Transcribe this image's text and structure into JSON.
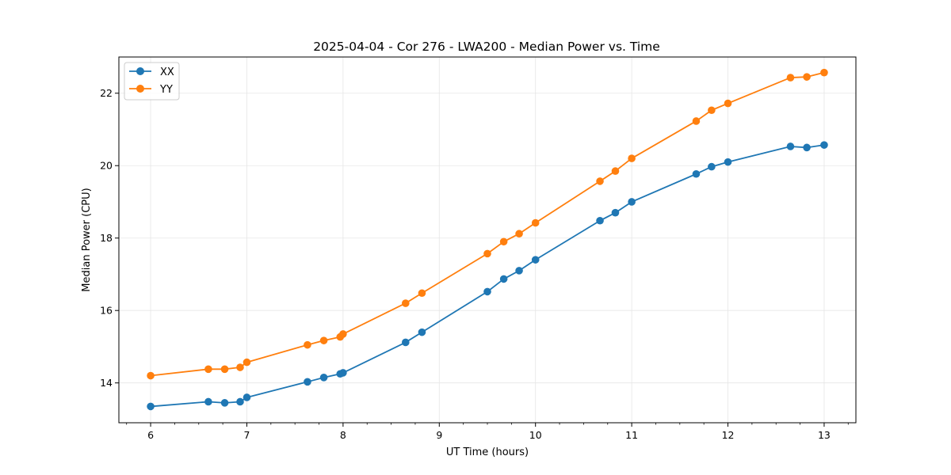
{
  "chart_data": {
    "type": "line",
    "title": "2025-04-04 - Cor 276 - LWA200 - Median Power vs. Time",
    "xlabel": "UT Time (hours)",
    "ylabel": "Median Power (CPU)",
    "xlim": [
      5.67,
      13.33
    ],
    "ylim": [
      12.9,
      23.0
    ],
    "xticks": [
      6,
      7,
      8,
      9,
      10,
      11,
      12,
      13
    ],
    "xtick_labels": [
      "6",
      "7",
      "8",
      "9",
      "10",
      "11",
      "12",
      "13"
    ],
    "yticks": [
      14,
      16,
      18,
      20,
      22
    ],
    "ytick_labels": [
      "14",
      "16",
      "18",
      "20",
      "22"
    ],
    "grid": true,
    "legend_position": "top-left",
    "series": [
      {
        "name": "XX",
        "color": "#1f77b4",
        "x": [
          6.0,
          6.6,
          6.77,
          6.93,
          7.0,
          7.63,
          7.8,
          7.97,
          8.0,
          8.65,
          8.82,
          9.5,
          9.67,
          9.83,
          10.0,
          10.67,
          10.83,
          11.0,
          11.67,
          11.83,
          12.0,
          12.65,
          12.82,
          13.0
        ],
        "y": [
          13.35,
          13.48,
          13.45,
          13.48,
          13.6,
          14.03,
          14.15,
          14.25,
          14.28,
          15.12,
          15.4,
          16.52,
          16.87,
          17.1,
          17.4,
          18.48,
          18.7,
          19.0,
          19.77,
          19.97,
          20.1,
          20.53,
          20.5,
          20.57
        ]
      },
      {
        "name": "YY",
        "color": "#ff7f0e",
        "x": [
          6.0,
          6.6,
          6.77,
          6.93,
          7.0,
          7.63,
          7.8,
          7.97,
          8.0,
          8.65,
          8.82,
          9.5,
          9.67,
          9.83,
          10.0,
          10.67,
          10.83,
          11.0,
          11.67,
          11.83,
          12.0,
          12.65,
          12.82,
          13.0
        ],
        "y": [
          14.2,
          14.38,
          14.38,
          14.43,
          14.57,
          15.05,
          15.17,
          15.27,
          15.35,
          16.2,
          16.48,
          17.57,
          17.9,
          18.12,
          18.42,
          19.57,
          19.85,
          20.2,
          21.23,
          21.53,
          21.72,
          22.43,
          22.45,
          22.57
        ]
      }
    ]
  }
}
